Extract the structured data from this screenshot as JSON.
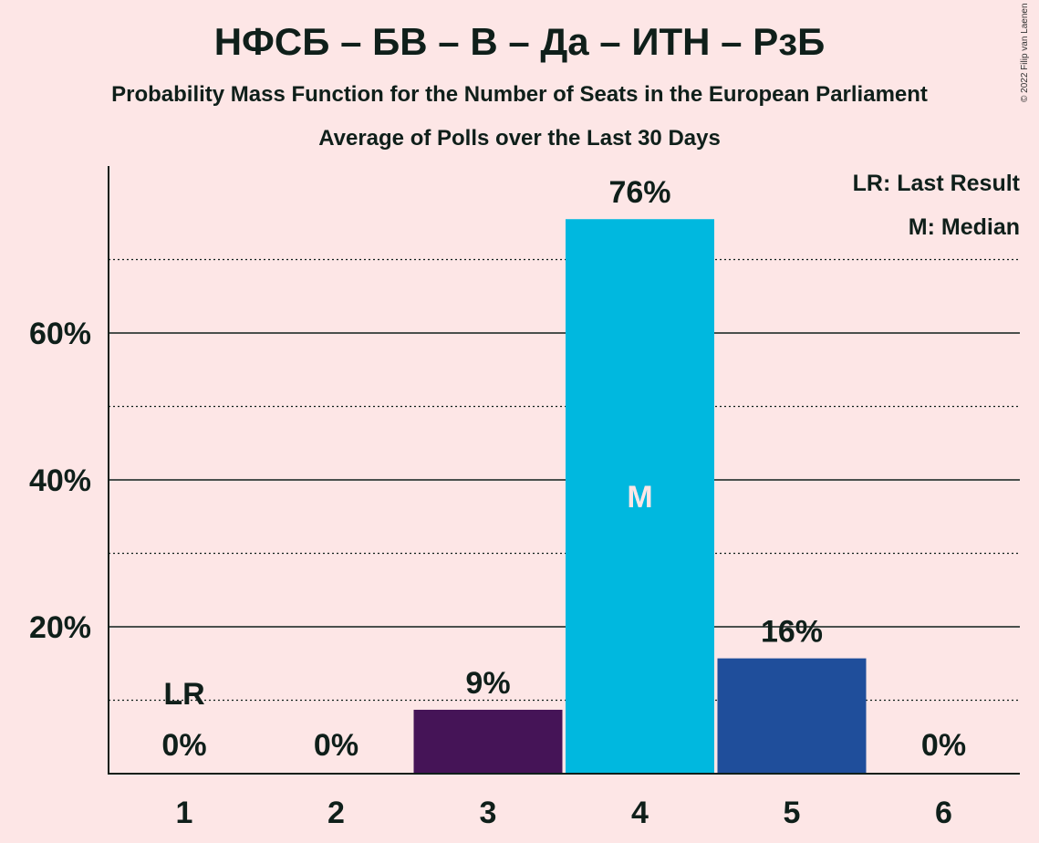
{
  "title": "НФСБ – БВ – В – Да – ИТН – РзБ",
  "subtitle": "Probability Mass Function for the Number of Seats in the European Parliament",
  "subtitle2": "Average of Polls over the Last 30 Days",
  "copyright": "© 2022 Filip van Laenen",
  "legend": {
    "last_result": "LR: Last Result",
    "median": "M: Median"
  },
  "colors": {
    "background": "#fde6e6",
    "text": "#0f1f1a"
  },
  "chart_data": {
    "type": "bar",
    "categories": [
      "1",
      "2",
      "3",
      "4",
      "5",
      "6"
    ],
    "values": [
      0,
      0,
      8.7,
      75.5,
      15.7,
      0
    ],
    "value_labels": [
      "0%",
      "0%",
      "9%",
      "76%",
      "16%",
      "0%"
    ],
    "bar_colors": [
      "#451457",
      "#451457",
      "#451457",
      "#00b8df",
      "#1f4e9b",
      "#1f4e9b"
    ],
    "ylim": [
      0,
      80
    ],
    "y_major_ticks": [
      20,
      40,
      60
    ],
    "y_major_tick_labels": [
      "20%",
      "40%",
      "60%"
    ],
    "y_minor_ticks": [
      10,
      30,
      50,
      70
    ],
    "grid": true,
    "legend_position": "top-right",
    "last_result_label": "LR",
    "last_result_category": "1",
    "median_label": "M",
    "median_category": "4"
  }
}
